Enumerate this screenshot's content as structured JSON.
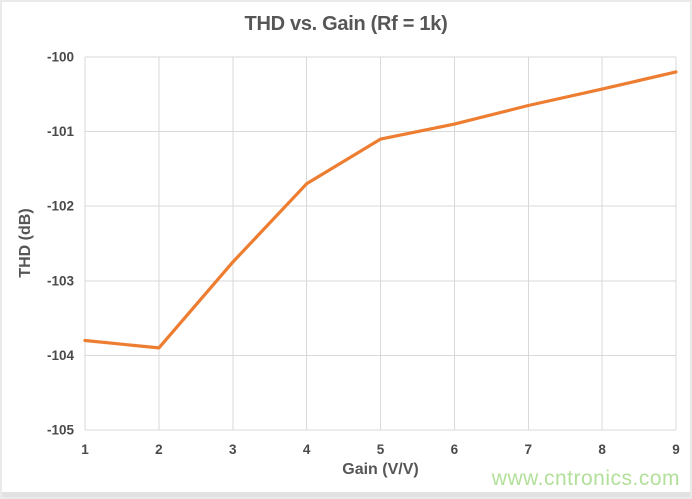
{
  "chart_data": {
    "type": "line",
    "title": "THD vs. Gain (Rf = 1k)",
    "xlabel": "Gain (V/V)",
    "ylabel": "THD (dB)",
    "x": [
      1,
      2,
      3,
      4,
      5,
      6,
      7,
      8,
      9
    ],
    "series": [
      {
        "name": "THD",
        "color": "#ED7D31",
        "values": [
          -103.8,
          -103.9,
          -102.75,
          -101.7,
          -101.1,
          -100.9,
          -100.65,
          -100.43,
          -100.2
        ]
      }
    ],
    "xlim": [
      1,
      9
    ],
    "ylim": [
      -105,
      -100
    ],
    "xticks": [
      1,
      2,
      3,
      4,
      5,
      6,
      7,
      8,
      9
    ],
    "yticks": [
      -100,
      -101,
      -102,
      -103,
      -104,
      -105
    ],
    "grid": true,
    "legend": "none",
    "gridline_color": "#D9D9D9",
    "axis_text_color": "#4a4a4a",
    "title_color": "#565656"
  },
  "watermark": {
    "text": "www.cntronics.com",
    "color": "#b2e09a"
  }
}
